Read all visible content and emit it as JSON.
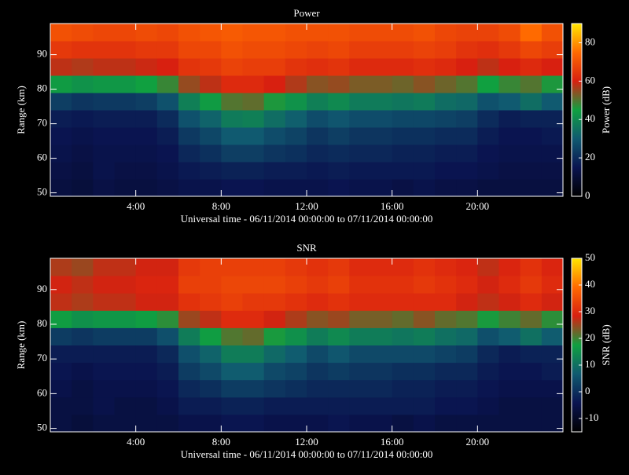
{
  "chart_data": [
    {
      "type": "heatmap",
      "title": "Power",
      "xlabel": "Universal time - 06/11/2014 00:00:00 to 07/11/2014 00:00:00",
      "ylabel": "Range (km)",
      "x": [
        0.5,
        1.5,
        2.5,
        3.5,
        4.5,
        5.5,
        6.5,
        7.5,
        8.5,
        9.5,
        10.5,
        11.5,
        12.5,
        13.5,
        14.5,
        15.5,
        16.5,
        17.5,
        18.5,
        19.5,
        20.5,
        21.5,
        22.5,
        23.5
      ],
      "y": [
        51.5,
        56.5,
        61.5,
        66.5,
        71.5,
        76.5,
        81.5,
        86.5,
        91.5,
        96.5
      ],
      "xlim": [
        0,
        24
      ],
      "xticks": [
        {
          "value": 4,
          "label": "4:00"
        },
        {
          "value": 8,
          "label": "8:00"
        },
        {
          "value": 12,
          "label": "12:00"
        },
        {
          "value": 16,
          "label": "16:00"
        },
        {
          "value": 20,
          "label": "20:00"
        }
      ],
      "ylim": [
        49,
        99
      ],
      "yticks": [
        50,
        60,
        70,
        80,
        90
      ],
      "values": [
        [
          12,
          11,
          13,
          12,
          12,
          13,
          14,
          14,
          15,
          15,
          14,
          14,
          14,
          15,
          14,
          14,
          13,
          14,
          13,
          13,
          12,
          12,
          12,
          12
        ],
        [
          13,
          12,
          14,
          13,
          13,
          14,
          16,
          17,
          18,
          18,
          17,
          17,
          16,
          17,
          16,
          16,
          16,
          16,
          15,
          15,
          14,
          13,
          13,
          13
        ],
        [
          14,
          13,
          14,
          14,
          14,
          15,
          19,
          21,
          24,
          24,
          22,
          21,
          19,
          20,
          19,
          19,
          18,
          18,
          17,
          17,
          15,
          14,
          14,
          14
        ],
        [
          15,
          14,
          15,
          15,
          15,
          17,
          23,
          26,
          30,
          30,
          27,
          25,
          22,
          24,
          22,
          22,
          21,
          21,
          20,
          20,
          17,
          15,
          15,
          16
        ],
        [
          17,
          16,
          17,
          17,
          17,
          20,
          28,
          32,
          37,
          38,
          34,
          31,
          27,
          29,
          27,
          27,
          26,
          26,
          25,
          24,
          20,
          17,
          18,
          18
        ],
        [
          24,
          22,
          23,
          23,
          24,
          28,
          38,
          44,
          50,
          51,
          46,
          42,
          38,
          40,
          37,
          37,
          36,
          37,
          34,
          33,
          28,
          30,
          34,
          30
        ],
        [
          44,
          42,
          43,
          43,
          45,
          48,
          55,
          58,
          62,
          62,
          60,
          57,
          54,
          55,
          53,
          53,
          52,
          54,
          52,
          50,
          45,
          48,
          50,
          46
        ],
        [
          58,
          57,
          58,
          58,
          59,
          60,
          64,
          65,
          67,
          66,
          66,
          64,
          63,
          64,
          62,
          62,
          62,
          63,
          62,
          60,
          58,
          60,
          62,
          60
        ],
        [
          65,
          64,
          64,
          64,
          65,
          65,
          68,
          68,
          70,
          69,
          69,
          68,
          67,
          68,
          66,
          66,
          66,
          67,
          66,
          64,
          63,
          65,
          68,
          66
        ],
        [
          70,
          69,
          68,
          68,
          69,
          68,
          70,
          71,
          72,
          71,
          71,
          70,
          70,
          70,
          69,
          69,
          69,
          70,
          68,
          67,
          67,
          69,
          75,
          70
        ]
      ],
      "colorbar": {
        "label": "Power (dB)",
        "lim": [
          0,
          90
        ],
        "ticks": [
          0,
          20,
          40,
          60,
          80
        ]
      },
      "colormap": [
        "#000000",
        "#0a1450",
        "#105a70",
        "#10a040",
        "#d82010",
        "#ff6a00",
        "#ffe600"
      ]
    },
    {
      "type": "heatmap",
      "title": "SNR",
      "xlabel": "Universal time - 06/11/2014 00:00:00 to 07/11/2014 00:00:00",
      "ylabel": "Range (km)",
      "x": [
        0.5,
        1.5,
        2.5,
        3.5,
        4.5,
        5.5,
        6.5,
        7.5,
        8.5,
        9.5,
        10.5,
        11.5,
        12.5,
        13.5,
        14.5,
        15.5,
        16.5,
        17.5,
        18.5,
        19.5,
        20.5,
        21.5,
        22.5,
        23.5
      ],
      "y": [
        51.5,
        56.5,
        61.5,
        66.5,
        71.5,
        76.5,
        81.5,
        86.5,
        91.5,
        96.5
      ],
      "xlim": [
        0,
        24
      ],
      "xticks": [
        {
          "value": 4,
          "label": "4:00"
        },
        {
          "value": 8,
          "label": "8:00"
        },
        {
          "value": 12,
          "label": "12:00"
        },
        {
          "value": 16,
          "label": "16:00"
        },
        {
          "value": 20,
          "label": "20:00"
        }
      ],
      "ylim": [
        49,
        99
      ],
      "yticks": [
        50,
        60,
        70,
        80,
        90
      ],
      "values": [
        [
          -6,
          -7,
          -6,
          -6,
          -6,
          -6,
          -5,
          -5,
          -4,
          -4,
          -5,
          -5,
          -5,
          -4,
          -5,
          -5,
          -6,
          -5,
          -6,
          -6,
          -6,
          -6,
          -6,
          -6
        ],
        [
          -6,
          -6,
          -5,
          -6,
          -6,
          -5,
          -3,
          -3,
          -2,
          -2,
          -3,
          -3,
          -3,
          -3,
          -3,
          -3,
          -3,
          -3,
          -4,
          -4,
          -5,
          -6,
          -6,
          -6
        ],
        [
          -5,
          -6,
          -5,
          -5,
          -5,
          -4,
          -1,
          0,
          2,
          2,
          1,
          0,
          -1,
          -1,
          -1,
          -1,
          -2,
          -2,
          -3,
          -3,
          -4,
          -5,
          -5,
          -5
        ],
        [
          -4,
          -5,
          -4,
          -4,
          -4,
          -3,
          2,
          4,
          7,
          7,
          4,
          3,
          1,
          2,
          1,
          1,
          0,
          0,
          -1,
          -1,
          -3,
          -4,
          -4,
          -3
        ],
        [
          -3,
          -3,
          -3,
          -3,
          -3,
          -1,
          5,
          8,
          12,
          12,
          9,
          7,
          4,
          6,
          4,
          4,
          4,
          4,
          3,
          2,
          -1,
          -3,
          -2,
          -2
        ],
        [
          2,
          1,
          2,
          2,
          2,
          5,
          12,
          17,
          21,
          22,
          18,
          15,
          12,
          14,
          12,
          12,
          11,
          12,
          10,
          9,
          5,
          7,
          10,
          7
        ],
        [
          17,
          15,
          16,
          16,
          17,
          19,
          25,
          27,
          30,
          30,
          28,
          26,
          24,
          25,
          23,
          23,
          22,
          24,
          22,
          21,
          18,
          20,
          22,
          19
        ],
        [
          27,
          26,
          27,
          27,
          28,
          28,
          31,
          32,
          33,
          32,
          32,
          31,
          30,
          31,
          30,
          30,
          30,
          30,
          30,
          28,
          27,
          28,
          30,
          28
        ],
        [
          28,
          27,
          28,
          28,
          29,
          29,
          33,
          33,
          34,
          34,
          34,
          33,
          32,
          33,
          31,
          31,
          31,
          32,
          31,
          30,
          28,
          30,
          32,
          30
        ],
        [
          26,
          25,
          27,
          27,
          28,
          28,
          32,
          33,
          33,
          33,
          33,
          32,
          31,
          32,
          30,
          30,
          30,
          31,
          30,
          29,
          27,
          29,
          31,
          29
        ]
      ],
      "colorbar": {
        "label": "SNR (dB)",
        "lim": [
          -15,
          50
        ],
        "ticks": [
          -10,
          0,
          10,
          20,
          30,
          40,
          50
        ]
      },
      "colormap": [
        "#000000",
        "#0a1450",
        "#105a70",
        "#10a040",
        "#d82010",
        "#ff6a00",
        "#ffe600"
      ]
    }
  ]
}
